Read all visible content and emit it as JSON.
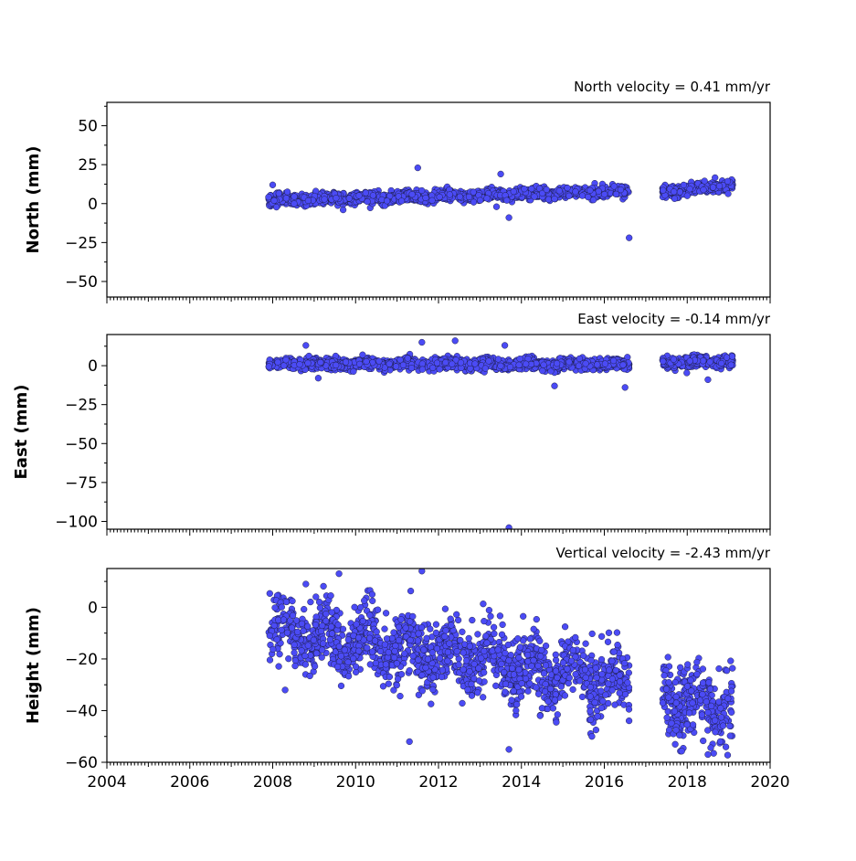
{
  "chart_data": [
    {
      "type": "scatter",
      "title": "North velocity = 0.41 mm/yr",
      "ylabel": "North (mm)",
      "xlim": [
        2004,
        2020
      ],
      "ylim": [
        -60,
        65
      ],
      "yticks": [
        -50,
        -25,
        0,
        25,
        50
      ],
      "xticks": [
        2004,
        2006,
        2008,
        2010,
        2012,
        2014,
        2016,
        2018,
        2020
      ],
      "show_xtick_labels": false,
      "color": "#4b4bf5",
      "segments": [
        {
          "x_start": 2007.9,
          "x_end": 2016.6,
          "y_start": 2,
          "y_end": 8
        },
        {
          "x_start": 2017.4,
          "x_end": 2019.1,
          "y_start": 8,
          "y_end": 12
        }
      ],
      "outliers": [
        {
          "x": 2011.5,
          "y": 23
        },
        {
          "x": 2013.5,
          "y": 19
        },
        {
          "x": 2013.4,
          "y": -2
        },
        {
          "x": 2013.7,
          "y": -9
        },
        {
          "x": 2016.6,
          "y": -22
        },
        {
          "x": 2008.0,
          "y": 12
        },
        {
          "x": 2009.7,
          "y": -4
        }
      ]
    },
    {
      "type": "scatter",
      "title": "East velocity = -0.14 mm/yr",
      "ylabel": "East (mm)",
      "xlim": [
        2004,
        2020
      ],
      "ylim": [
        -105,
        20
      ],
      "yticks": [
        -100,
        -75,
        -50,
        -25,
        0
      ],
      "xticks": [
        2004,
        2006,
        2008,
        2010,
        2012,
        2014,
        2016,
        2018,
        2020
      ],
      "show_xtick_labels": false,
      "color": "#4b4bf5",
      "segments": [
        {
          "x_start": 2007.9,
          "x_end": 2016.6,
          "y_start": 1,
          "y_end": 1
        },
        {
          "x_start": 2017.4,
          "x_end": 2019.1,
          "y_start": 2,
          "y_end": 3
        }
      ],
      "outliers": [
        {
          "x": 2011.6,
          "y": 15
        },
        {
          "x": 2012.4,
          "y": 16
        },
        {
          "x": 2008.8,
          "y": 13
        },
        {
          "x": 2013.6,
          "y": 13
        },
        {
          "x": 2009.1,
          "y": -8
        },
        {
          "x": 2014.8,
          "y": -13
        },
        {
          "x": 2016.5,
          "y": -14
        },
        {
          "x": 2018.5,
          "y": -9
        },
        {
          "x": 2013.7,
          "y": -104
        }
      ]
    },
    {
      "type": "scatter",
      "title": "Vertical velocity = -2.43 mm/yr",
      "ylabel": "Height (mm)",
      "xlim": [
        2004,
        2020
      ],
      "ylim": [
        -60,
        15
      ],
      "yticks": [
        -60,
        -40,
        -20,
        0
      ],
      "xticks": [
        2004,
        2006,
        2008,
        2010,
        2012,
        2014,
        2016,
        2018,
        2020
      ],
      "show_xtick_labels": true,
      "color": "#4b4bf5",
      "segments": [
        {
          "x_start": 2007.9,
          "x_end": 2016.6,
          "y_start": -8,
          "y_end": -30
        },
        {
          "x_start": 2017.4,
          "x_end": 2019.1,
          "y_start": -35,
          "y_end": -38
        }
      ],
      "outliers": [
        {
          "x": 2009.6,
          "y": 13
        },
        {
          "x": 2011.6,
          "y": 14
        },
        {
          "x": 2008.8,
          "y": 9
        },
        {
          "x": 2010.4,
          "y": 5
        },
        {
          "x": 2011.3,
          "y": -52
        },
        {
          "x": 2013.7,
          "y": -55
        },
        {
          "x": 2018.5,
          "y": -57
        },
        {
          "x": 2015.7,
          "y": -50
        },
        {
          "x": 2008.3,
          "y": -32
        }
      ]
    }
  ]
}
